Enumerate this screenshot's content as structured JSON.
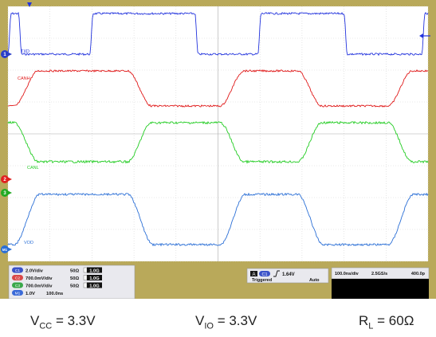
{
  "chart_data": {
    "type": "line",
    "x_unit_per_div": "100.0ns/div",
    "x_divisions": 10,
    "x_range_ns": [
      0,
      1000
    ],
    "grid": true,
    "series": [
      {
        "name": "TXD",
        "channel": "C1",
        "color": "#2233dd",
        "scale": "2.0V/div",
        "impedance": "50Ω",
        "bandwidth": "1.0G",
        "high_ns": [
          [
            0,
            25
          ],
          [
            195,
            445
          ],
          [
            595,
            800
          ],
          [
            985,
            1000
          ]
        ],
        "rail_levels": [
          "low",
          "high"
        ]
      },
      {
        "name": "CANH",
        "channel": "C2",
        "color": "#e01818",
        "scale": "700.0mV/div",
        "impedance": "50Ω",
        "bandwidth": "1.0G",
        "dominant_ns": [
          [
            15,
            285
          ],
          [
            505,
            690
          ],
          [
            905,
            1000
          ]
        ],
        "rail_levels": [
          "dominant_high",
          "recessive_mid"
        ]
      },
      {
        "name": "CANL",
        "channel": "C3",
        "color": "#22cc22",
        "scale": "700.0mV/div",
        "impedance": "50Ω",
        "bandwidth": "1.0G",
        "dominant_ns": [
          [
            15,
            285
          ],
          [
            505,
            690
          ],
          [
            905,
            1000
          ]
        ],
        "rail_levels": [
          "dominant_low",
          "recessive_mid"
        ]
      },
      {
        "name": "VOD",
        "channel": "M1",
        "color": "#2b6fd6",
        "scale": "1.0V",
        "timebase": "100.0ns",
        "dominant_ns": [
          [
            15,
            285
          ],
          [
            505,
            690
          ],
          [
            905,
            1000
          ]
        ],
        "rail_levels": [
          "dominant_high",
          "recessive_low"
        ]
      }
    ],
    "trigger": {
      "source": "C1",
      "slope": "rising",
      "level": "1.64V",
      "state": "Triggered",
      "mode": "Auto"
    },
    "timebase": {
      "scale": "100.0ns/div",
      "sample_rate": "2.5GS/s",
      "window": "400.0p"
    }
  },
  "channels_panel": [
    {
      "badge": "C1",
      "scale": "2.0V/div",
      "impedance": "50Ω",
      "bw": "1.0G",
      "color": "#3a52c8"
    },
    {
      "badge": "C2",
      "scale": "700.0mV/div",
      "impedance": "50Ω",
      "bw": "1.0G",
      "color": "#d94848"
    },
    {
      "badge": "C3",
      "scale": "700.0mV/div",
      "impedance": "50Ω",
      "bw": "1.0G",
      "color": "#3aa84a"
    },
    {
      "badge": "M1",
      "scale": "1.0V",
      "impedance": "100.0ns",
      "bw": "",
      "color": "#3a6ad8"
    }
  ],
  "channel_markers": [
    "1",
    "2",
    "3",
    "M1"
  ],
  "trace_labels": [
    "TXD",
    "CANH",
    "CANL",
    "VOD"
  ],
  "trigger_panel": {
    "badge_a": "A",
    "badge_c": "C1",
    "level": "1.64V",
    "state": "Triggered",
    "mode": "Auto"
  },
  "timebase_panel": {
    "scale": "100.0ns/div",
    "rate": "2.5GS/s",
    "window": "400.0p"
  },
  "conditions": {
    "vcc": {
      "v": "V",
      "sub": "CC",
      "rest": " = 3.3V"
    },
    "vio": {
      "v": "V",
      "sub": "IO",
      "rest": " = 3.3V"
    },
    "rl": {
      "v": "R",
      "sub": "L",
      "rest": " = 60Ω"
    }
  },
  "colors": {
    "frame": "#b9a95a",
    "screen_bg": "#ffffff",
    "grid": "#c8c8c8",
    "panel_bg": "#e9e9ee",
    "black_panel": "#000000"
  }
}
